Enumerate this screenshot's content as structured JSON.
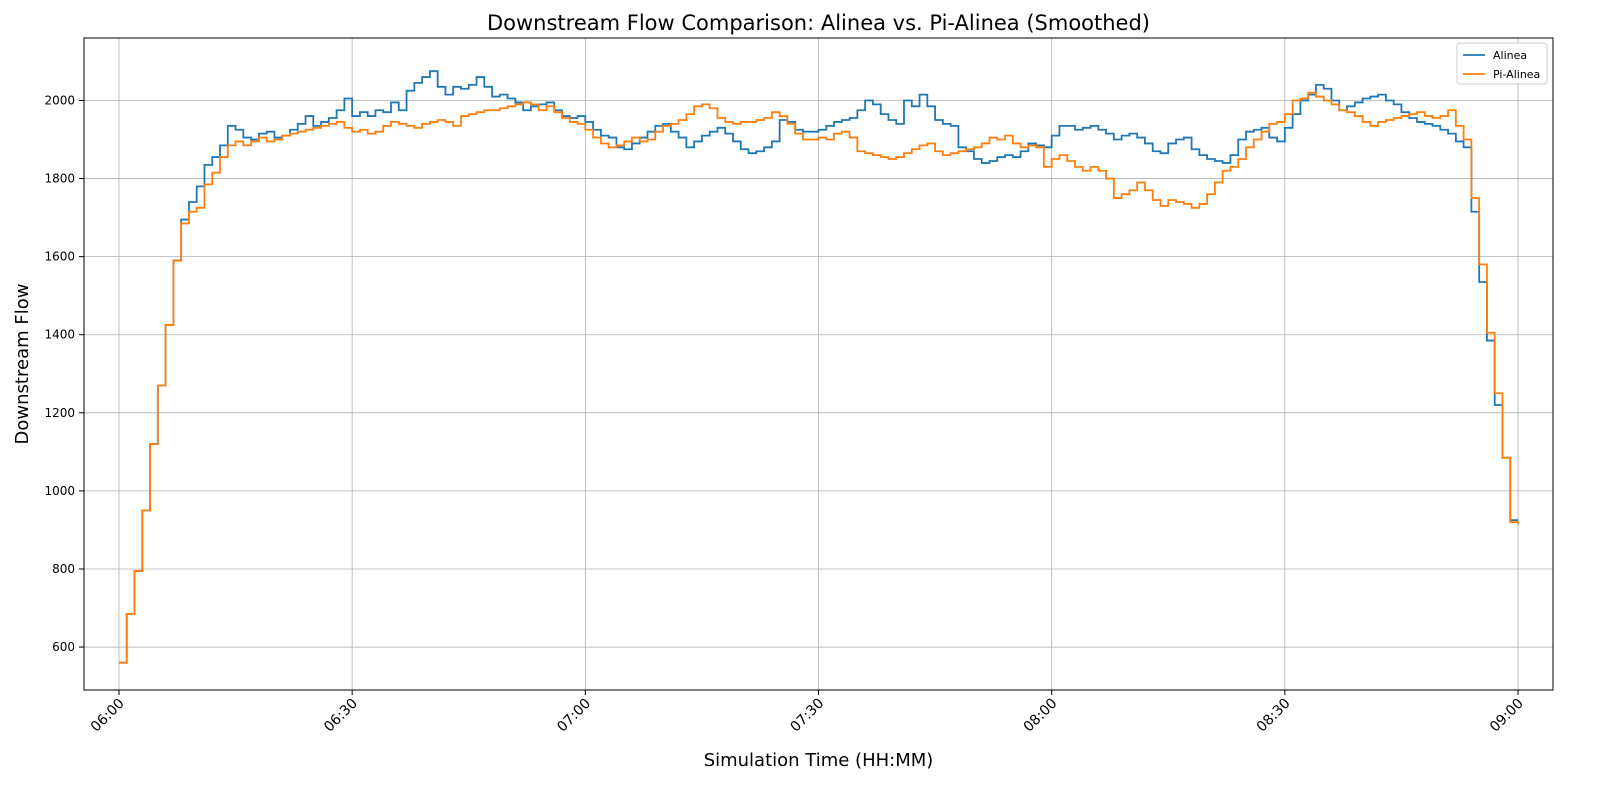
{
  "chart_data": {
    "type": "line",
    "step": true,
    "title": "Downstream Flow Comparison: Alinea vs. Pi-Alinea (Smoothed)",
    "xlabel": "Simulation Time (HH:MM)",
    "ylabel": "Downstream Flow",
    "xlim": [
      -4.5,
      184.5
    ],
    "ylim": [
      490,
      2160
    ],
    "x_unit": "minutes since 06:00",
    "x_ticks": [
      0,
      30,
      60,
      90,
      120,
      150,
      180
    ],
    "x_tick_labels": [
      "06:00",
      "06:30",
      "07:00",
      "07:30",
      "08:00",
      "08:30",
      "09:00"
    ],
    "y_ticks": [
      600,
      800,
      1000,
      1200,
      1400,
      1600,
      1800,
      2000
    ],
    "y_tick_labels": [
      "600",
      "800",
      "1000",
      "1200",
      "1400",
      "1600",
      "1800",
      "2000"
    ],
    "grid": true,
    "legend_position": "top-right",
    "x": [
      0,
      1,
      2,
      3,
      4,
      5,
      6,
      7,
      8,
      9,
      10,
      11,
      12,
      13,
      14,
      15,
      16,
      17,
      18,
      19,
      20,
      21,
      22,
      23,
      24,
      25,
      26,
      27,
      28,
      29,
      30,
      31,
      32,
      33,
      34,
      35,
      36,
      37,
      38,
      39,
      40,
      41,
      42,
      43,
      44,
      45,
      46,
      47,
      48,
      49,
      50,
      51,
      52,
      53,
      54,
      55,
      56,
      57,
      58,
      59,
      60,
      61,
      62,
      63,
      64,
      65,
      66,
      67,
      68,
      69,
      70,
      71,
      72,
      73,
      74,
      75,
      76,
      77,
      78,
      79,
      80,
      81,
      82,
      83,
      84,
      85,
      86,
      87,
      88,
      89,
      90,
      91,
      92,
      93,
      94,
      95,
      96,
      97,
      98,
      99,
      100,
      101,
      102,
      103,
      104,
      105,
      106,
      107,
      108,
      109,
      110,
      111,
      112,
      113,
      114,
      115,
      116,
      117,
      118,
      119,
      120,
      121,
      122,
      123,
      124,
      125,
      126,
      127,
      128,
      129,
      130,
      131,
      132,
      133,
      134,
      135,
      136,
      137,
      138,
      139,
      140,
      141,
      142,
      143,
      144,
      145,
      146,
      147,
      148,
      149,
      150,
      151,
      152,
      153,
      154,
      155,
      156,
      157,
      158,
      159,
      160,
      161,
      162,
      163,
      164,
      165,
      166,
      167,
      168,
      169,
      170,
      171,
      172,
      173,
      174,
      175,
      176,
      177,
      178,
      179,
      180
    ],
    "series": [
      {
        "name": "Alinea",
        "color": "#1f77b4",
        "values": [
          560,
          685,
          795,
          950,
          1120,
          1270,
          1425,
          1590,
          1695,
          1740,
          1780,
          1835,
          1855,
          1885,
          1935,
          1925,
          1905,
          1900,
          1915,
          1920,
          1905,
          1910,
          1925,
          1940,
          1960,
          1935,
          1945,
          1955,
          1975,
          2005,
          1960,
          1970,
          1960,
          1975,
          1970,
          1995,
          1975,
          2025,
          2045,
          2060,
          2075,
          2035,
          2015,
          2035,
          2030,
          2040,
          2060,
          2035,
          2010,
          2015,
          2005,
          1995,
          1975,
          1985,
          1990,
          1995,
          1975,
          1960,
          1955,
          1960,
          1945,
          1925,
          1910,
          1905,
          1880,
          1875,
          1890,
          1905,
          1920,
          1935,
          1940,
          1920,
          1905,
          1880,
          1895,
          1910,
          1920,
          1930,
          1915,
          1895,
          1875,
          1865,
          1870,
          1880,
          1895,
          1950,
          1945,
          1925,
          1920,
          1920,
          1925,
          1935,
          1945,
          1950,
          1955,
          1975,
          2000,
          1990,
          1965,
          1950,
          1940,
          2000,
          1985,
          2015,
          1985,
          1950,
          1940,
          1935,
          1880,
          1870,
          1850,
          1840,
          1845,
          1855,
          1860,
          1855,
          1870,
          1890,
          1885,
          1880,
          1910,
          1935,
          1935,
          1925,
          1930,
          1935,
          1925,
          1915,
          1900,
          1910,
          1915,
          1905,
          1890,
          1870,
          1865,
          1890,
          1900,
          1905,
          1875,
          1860,
          1850,
          1845,
          1840,
          1860,
          1900,
          1920,
          1925,
          1930,
          1905,
          1895,
          1930,
          1965,
          2000,
          2015,
          2040,
          2030,
          2000,
          1975,
          1985,
          1995,
          2005,
          2010,
          2015,
          2000,
          1990,
          1970,
          1955,
          1945,
          1940,
          1935,
          1925,
          1915,
          1895,
          1880,
          1715,
          1535,
          1385,
          1220,
          1085,
          925,
          925
        ]
      },
      {
        "name": "Pi-Alinea",
        "color": "#ff7f0e",
        "values": [
          560,
          685,
          795,
          950,
          1120,
          1270,
          1425,
          1590,
          1685,
          1715,
          1725,
          1785,
          1815,
          1855,
          1885,
          1895,
          1885,
          1895,
          1905,
          1895,
          1900,
          1910,
          1915,
          1920,
          1925,
          1930,
          1935,
          1940,
          1945,
          1930,
          1920,
          1925,
          1915,
          1920,
          1935,
          1945,
          1940,
          1935,
          1930,
          1940,
          1945,
          1950,
          1945,
          1935,
          1960,
          1965,
          1970,
          1975,
          1975,
          1980,
          1985,
          1990,
          1995,
          1990,
          1975,
          1985,
          1970,
          1955,
          1945,
          1940,
          1925,
          1905,
          1890,
          1880,
          1885,
          1895,
          1905,
          1895,
          1900,
          1920,
          1935,
          1940,
          1950,
          1965,
          1985,
          1990,
          1980,
          1955,
          1945,
          1940,
          1945,
          1945,
          1950,
          1955,
          1970,
          1960,
          1940,
          1915,
          1900,
          1900,
          1905,
          1900,
          1915,
          1920,
          1905,
          1870,
          1865,
          1860,
          1855,
          1850,
          1855,
          1865,
          1875,
          1885,
          1890,
          1870,
          1860,
          1865,
          1870,
          1875,
          1880,
          1890,
          1905,
          1900,
          1910,
          1890,
          1880,
          1885,
          1880,
          1830,
          1850,
          1860,
          1845,
          1830,
          1820,
          1830,
          1820,
          1800,
          1750,
          1760,
          1770,
          1790,
          1770,
          1745,
          1730,
          1745,
          1740,
          1735,
          1725,
          1735,
          1760,
          1790,
          1820,
          1830,
          1850,
          1880,
          1900,
          1920,
          1940,
          1945,
          1965,
          2000,
          2005,
          2020,
          2010,
          2000,
          1990,
          1975,
          1970,
          1960,
          1945,
          1935,
          1945,
          1950,
          1955,
          1960,
          1965,
          1970,
          1960,
          1955,
          1960,
          1975,
          1935,
          1900,
          1750,
          1580,
          1405,
          1250,
          1085,
          920,
          915
        ]
      }
    ]
  }
}
